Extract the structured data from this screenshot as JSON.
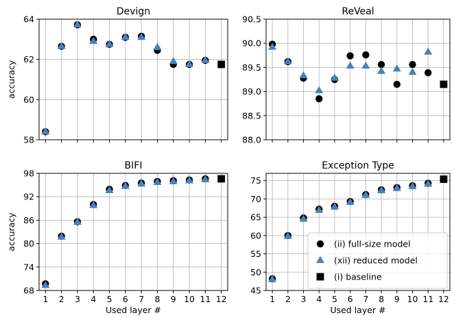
{
  "colors": {
    "full": "#000000",
    "reduced": "#4a82b8",
    "baseline": "#000000",
    "grid": "#b0b0b0"
  },
  "legend": {
    "full": "(ii) full-size model",
    "reduced": "(xii) reduced model",
    "baseline": "(i) baseline"
  },
  "chart_data": [
    {
      "type": "scatter",
      "title": "Devign",
      "xlabel": "",
      "ylabel": "accuracy",
      "grid": true,
      "x": [
        1,
        2,
        3,
        4,
        5,
        6,
        7,
        8,
        9,
        10,
        11,
        12
      ],
      "xlim": [
        0.6,
        12.4
      ],
      "ylim": [
        58,
        64
      ],
      "yticks": [
        58,
        60,
        62,
        64
      ],
      "series": [
        {
          "name": "(ii) full-size model",
          "marker": "circle",
          "x": [
            1,
            2,
            3,
            4,
            5,
            6,
            7,
            8,
            9,
            10,
            11
          ],
          "values": [
            58.4,
            62.65,
            63.72,
            63.0,
            62.75,
            63.1,
            63.15,
            62.45,
            61.75,
            61.75,
            61.95
          ]
        },
        {
          "name": "(xii) reduced model",
          "marker": "triangle",
          "x": [
            1,
            2,
            3,
            4,
            5,
            6,
            7,
            8,
            9,
            10,
            11
          ],
          "values": [
            58.4,
            62.65,
            63.72,
            62.9,
            62.75,
            63.1,
            63.1,
            62.6,
            61.9,
            61.75,
            61.95
          ]
        },
        {
          "name": "(i) baseline",
          "marker": "square",
          "x": [
            12
          ],
          "values": [
            61.75
          ]
        }
      ]
    },
    {
      "type": "scatter",
      "title": "ReVeal",
      "xlabel": "",
      "ylabel": "",
      "grid": true,
      "x": [
        1,
        2,
        3,
        4,
        5,
        6,
        7,
        8,
        9,
        10,
        11,
        12
      ],
      "xlim": [
        0.6,
        12.4
      ],
      "ylim": [
        88.0,
        90.5
      ],
      "yticks": [
        "88.0",
        "88.5",
        "89.0",
        "89.5",
        "90.0",
        "90.5"
      ],
      "series": [
        {
          "name": "(ii) full-size model",
          "marker": "circle",
          "x": [
            1,
            2,
            3,
            4,
            5,
            6,
            7,
            8,
            9,
            10,
            11
          ],
          "values": [
            89.98,
            89.62,
            89.28,
            88.85,
            89.25,
            89.74,
            89.76,
            89.56,
            89.15,
            89.56,
            89.39
          ]
        },
        {
          "name": "(xii) reduced model",
          "marker": "triangle",
          "x": [
            1,
            2,
            3,
            4,
            5,
            6,
            7,
            8,
            9,
            10,
            11
          ],
          "values": [
            89.92,
            89.62,
            89.33,
            89.02,
            89.28,
            89.53,
            89.53,
            89.42,
            89.47,
            89.4,
            89.82
          ]
        },
        {
          "name": "(i) baseline",
          "marker": "square",
          "x": [
            12
          ],
          "values": [
            89.15
          ]
        }
      ]
    },
    {
      "type": "scatter",
      "title": "BIFI",
      "xlabel": "Used layer #",
      "ylabel": "accuracy",
      "grid": true,
      "x": [
        1,
        2,
        3,
        4,
        5,
        6,
        7,
        8,
        9,
        10,
        11,
        12
      ],
      "xlim": [
        0.6,
        12.4
      ],
      "ylim": [
        68,
        98
      ],
      "yticks": [
        68,
        74,
        80,
        86,
        92,
        98
      ],
      "series": [
        {
          "name": "(ii) full-size model",
          "marker": "circle",
          "x": [
            1,
            2,
            3,
            4,
            5,
            6,
            7,
            8,
            9,
            10,
            11
          ],
          "values": [
            69.7,
            81.9,
            85.6,
            90.0,
            93.9,
            94.9,
            95.5,
            95.9,
            96.1,
            96.3,
            96.6
          ]
        },
        {
          "name": "(xii) reduced model",
          "marker": "triangle",
          "x": [
            1,
            2,
            3,
            4,
            5,
            6,
            7,
            8,
            9,
            10,
            11
          ],
          "values": [
            69.3,
            81.7,
            85.5,
            89.8,
            93.6,
            94.7,
            95.3,
            95.7,
            95.9,
            96.1,
            96.4
          ]
        },
        {
          "name": "(i) baseline",
          "marker": "square",
          "x": [
            12
          ],
          "values": [
            96.6
          ]
        }
      ]
    },
    {
      "type": "scatter",
      "title": "Exception Type",
      "xlabel": "Used layer #",
      "ylabel": "",
      "grid": true,
      "legend": "bottom-right",
      "x": [
        1,
        2,
        3,
        4,
        5,
        6,
        7,
        8,
        9,
        10,
        11,
        12
      ],
      "xlim": [
        0.6,
        12.4
      ],
      "ylim": [
        45,
        77
      ],
      "yticks": [
        45,
        50,
        55,
        60,
        65,
        70,
        75
      ],
      "series": [
        {
          "name": "(ii) full-size model",
          "marker": "circle",
          "x": [
            1,
            2,
            3,
            4,
            5,
            6,
            7,
            8,
            9,
            10,
            11
          ],
          "values": [
            48.2,
            60.0,
            64.8,
            67.2,
            68.0,
            69.3,
            71.2,
            72.5,
            73.1,
            73.6,
            74.3
          ]
        },
        {
          "name": "(xii) reduced model",
          "marker": "triangle",
          "x": [
            1,
            2,
            3,
            4,
            5,
            6,
            7,
            8,
            9,
            10,
            11
          ],
          "values": [
            48.0,
            59.8,
            64.5,
            66.9,
            67.8,
            69.1,
            71.0,
            72.3,
            72.9,
            73.4,
            74.1
          ]
        },
        {
          "name": "(i) baseline",
          "marker": "square",
          "x": [
            12
          ],
          "values": [
            75.4
          ]
        }
      ]
    }
  ]
}
